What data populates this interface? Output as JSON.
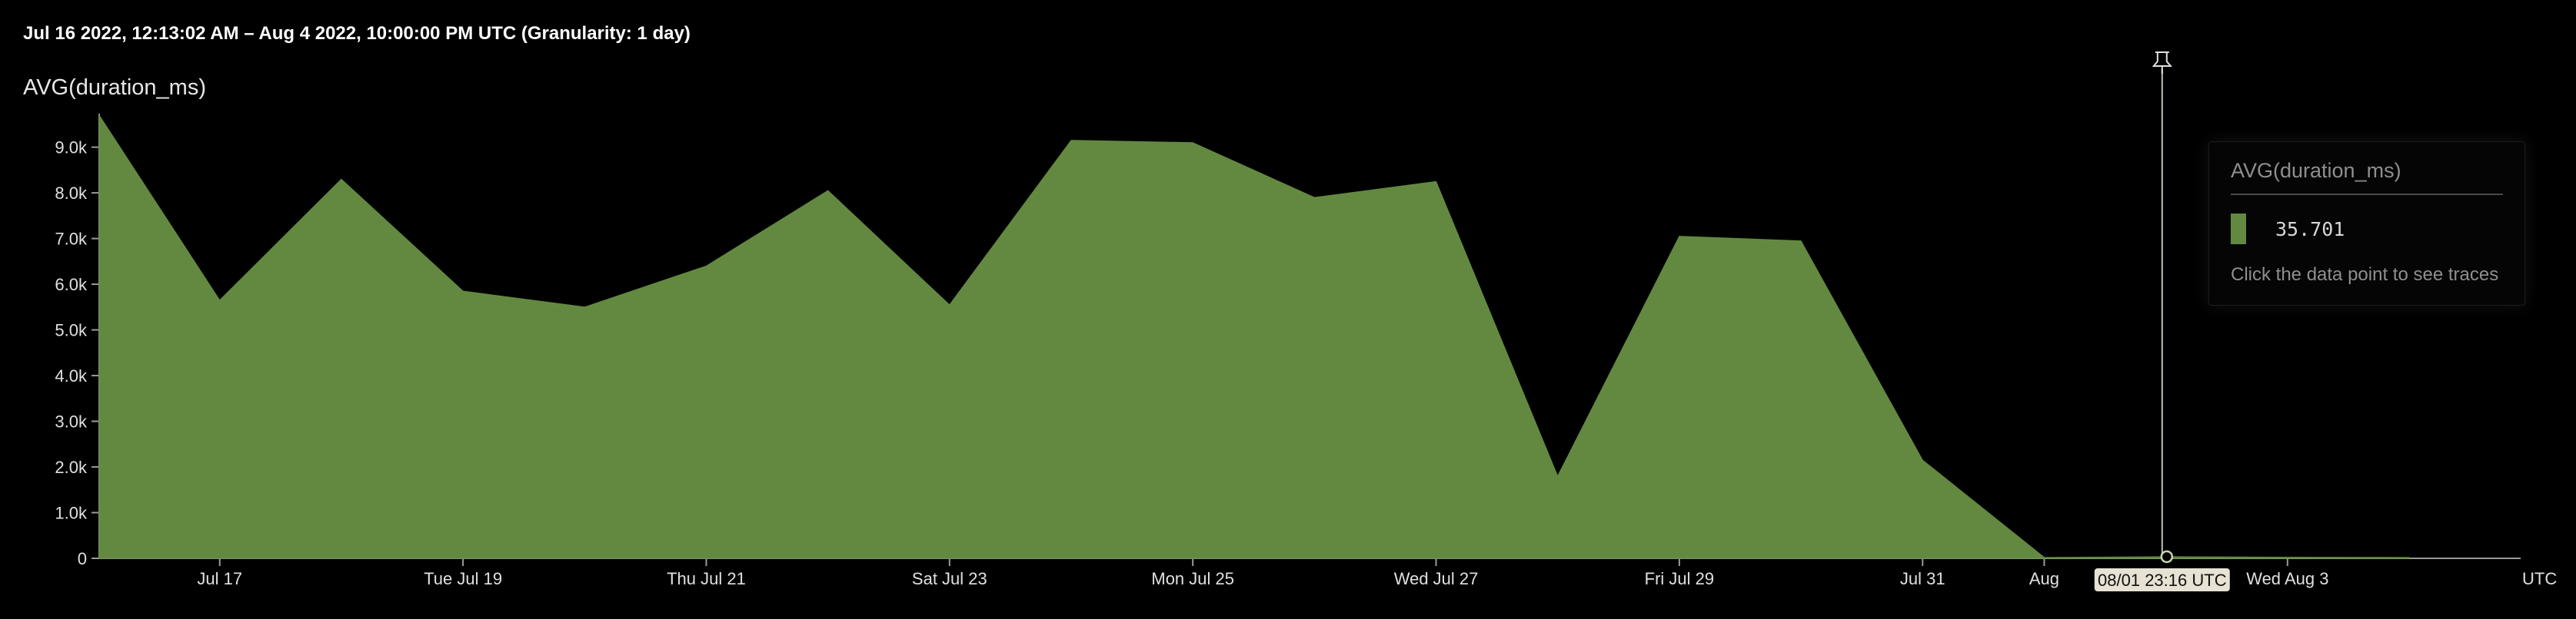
{
  "header": {
    "time_range": "Jul 16 2022, 12:13:02 AM – Aug 4 2022, 10:00:00 PM UTC (Granularity: 1 day)"
  },
  "chart_data": {
    "type": "area",
    "title": "AVG(duration_ms)",
    "series": [
      {
        "name": "AVG(duration_ms)",
        "color": "#638940",
        "points": [
          {
            "x": "2022-07-16T00:13:02Z",
            "y": 9700
          },
          {
            "x": "2022-07-17T00:00:00Z",
            "y": 5650
          },
          {
            "x": "2022-07-18T00:00:00Z",
            "y": 8300
          },
          {
            "x": "2022-07-19T00:00:00Z",
            "y": 5850
          },
          {
            "x": "2022-07-20T00:00:00Z",
            "y": 5500
          },
          {
            "x": "2022-07-21T00:00:00Z",
            "y": 6400
          },
          {
            "x": "2022-07-22T00:00:00Z",
            "y": 8050
          },
          {
            "x": "2022-07-23T00:00:00Z",
            "y": 5550
          },
          {
            "x": "2022-07-24T00:00:00Z",
            "y": 9150
          },
          {
            "x": "2022-07-25T00:00:00Z",
            "y": 9100
          },
          {
            "x": "2022-07-26T00:00:00Z",
            "y": 7900
          },
          {
            "x": "2022-07-27T00:00:00Z",
            "y": 8250
          },
          {
            "x": "2022-07-28T00:00:00Z",
            "y": 1800
          },
          {
            "x": "2022-07-29T00:00:00Z",
            "y": 7050
          },
          {
            "x": "2022-07-30T00:00:00Z",
            "y": 6950
          },
          {
            "x": "2022-07-31T00:00:00Z",
            "y": 2150
          },
          {
            "x": "2022-08-01T00:00:00Z",
            "y": 20
          },
          {
            "x": "2022-08-02T00:00:00Z",
            "y": 35.701
          },
          {
            "x": "2022-08-03T00:00:00Z",
            "y": 25
          },
          {
            "x": "2022-08-04T00:00:00Z",
            "y": 20
          }
        ]
      }
    ],
    "y_ticks": [
      {
        "value": 0,
        "label": "0"
      },
      {
        "value": 1000,
        "label": "1.0k"
      },
      {
        "value": 2000,
        "label": "2.0k"
      },
      {
        "value": 3000,
        "label": "3.0k"
      },
      {
        "value": 4000,
        "label": "4.0k"
      },
      {
        "value": 5000,
        "label": "5.0k"
      },
      {
        "value": 6000,
        "label": "6.0k"
      },
      {
        "value": 7000,
        "label": "7.0k"
      },
      {
        "value": 8000,
        "label": "8.0k"
      },
      {
        "value": 9000,
        "label": "9.0k"
      }
    ],
    "x_ticks": [
      {
        "value": "2022-07-17T00:00:00Z",
        "label": "Jul 17"
      },
      {
        "value": "2022-07-19T00:00:00Z",
        "label": "Tue Jul 19"
      },
      {
        "value": "2022-07-21T00:00:00Z",
        "label": "Thu Jul 21"
      },
      {
        "value": "2022-07-23T00:00:00Z",
        "label": "Sat Jul 23"
      },
      {
        "value": "2022-07-25T00:00:00Z",
        "label": "Mon Jul 25"
      },
      {
        "value": "2022-07-27T00:00:00Z",
        "label": "Wed Jul 27"
      },
      {
        "value": "2022-07-29T00:00:00Z",
        "label": "Fri Jul 29"
      },
      {
        "value": "2022-07-31T00:00:00Z",
        "label": "Jul 31"
      },
      {
        "value": "2022-08-01T00:00:00Z",
        "label": "Aug"
      },
      {
        "value": "2022-08-03T00:00:00Z",
        "label": "Wed Aug 3"
      }
    ],
    "xlim": [
      "2022-07-16T00:13:02Z",
      "2022-08-04T22:00:00Z"
    ],
    "ylim": [
      0,
      9700
    ],
    "x_axis_suffix": "UTC",
    "grid": false,
    "cursor": {
      "x": "2022-08-01T23:16:00Z",
      "label": "08/01 23:16 UTC",
      "pin_icon": "pin-icon"
    }
  },
  "tooltip": {
    "title": "AVG(duration_ms)",
    "value": "35.701",
    "hint": "Click the data point to see traces"
  }
}
